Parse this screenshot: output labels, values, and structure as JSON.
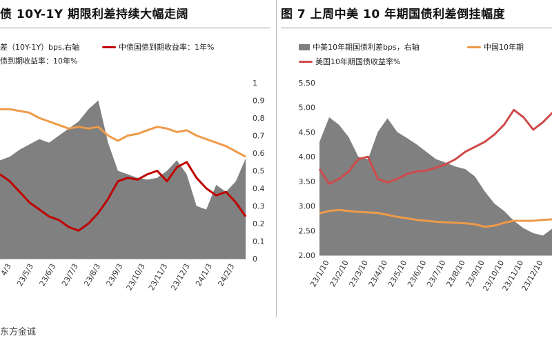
{
  "left": {
    "title": "债 10Y-1Y 期限利差持续大幅走阔",
    "legend": {
      "spread": "差（10Y-1Y）bps,右轴",
      "y1": "中债国债到期收益率：1年%",
      "y10": "债到期收益率：10年%"
    }
  },
  "right": {
    "title": "图 7  上周中美 10 年期国债利差倒挂幅度",
    "legend": {
      "spread": "中美10年期国债利差bps，右轴",
      "cn10": "中国10年期",
      "us10": "美国10年期国债收益率%"
    }
  },
  "source": "东方金诚",
  "colors": {
    "area": "#808080",
    "cn_1y": "#c00000",
    "cn_10y": "#ee9a48",
    "us_10y": "#cf4a4a"
  },
  "chart_data": [
    {
      "type": "line",
      "title": "债 10Y-1Y 期限利差持续大幅走阔",
      "x_ticks": [
        "4/3",
        "23/5/3",
        "23/6/3",
        "23/7/3",
        "23/8/3",
        "23/9/3",
        "23/10/3",
        "23/11/3",
        "23/12/3",
        "24/1/3",
        "24/2/3"
      ],
      "right_axis": {
        "ticks": [
          "0",
          "0.1",
          "0.2",
          "0.3",
          "0.4",
          "0.5",
          "0.6",
          "0.7",
          "0.8",
          "0.9",
          "1"
        ],
        "range": [
          0,
          1
        ]
      },
      "series": [
        {
          "name": "差（10Y-1Y）bps,右轴",
          "kind": "area",
          "axis": "right",
          "values": [
            0.56,
            0.58,
            0.62,
            0.65,
            0.68,
            0.66,
            0.7,
            0.74,
            0.78,
            0.85,
            0.9,
            0.66,
            0.5,
            0.48,
            0.46,
            0.45,
            0.46,
            0.5,
            0.56,
            0.48,
            0.3,
            0.28,
            0.42,
            0.38,
            0.44,
            0.57
          ]
        },
        {
          "name": "中债国债到期收益率：1年%",
          "kind": "line",
          "axis": "right",
          "values": [
            0.48,
            0.44,
            0.38,
            0.32,
            0.28,
            0.24,
            0.22,
            0.18,
            0.16,
            0.2,
            0.26,
            0.34,
            0.44,
            0.46,
            0.45,
            0.48,
            0.5,
            0.44,
            0.52,
            0.55,
            0.46,
            0.4,
            0.36,
            0.38,
            0.32,
            0.24
          ]
        },
        {
          "name": "债到期收益率：10年%",
          "kind": "line",
          "axis": "right",
          "values": [
            0.85,
            0.85,
            0.84,
            0.83,
            0.8,
            0.78,
            0.76,
            0.74,
            0.75,
            0.74,
            0.75,
            0.7,
            0.67,
            0.7,
            0.71,
            0.73,
            0.75,
            0.74,
            0.72,
            0.73,
            0.7,
            0.68,
            0.66,
            0.64,
            0.61,
            0.58
          ]
        }
      ]
    },
    {
      "type": "line",
      "title": "图 7  上周中美 10 年期国债利差倒挂幅度",
      "x_ticks": [
        "23/1/10",
        "23/2/10",
        "23/3/10",
        "23/4/10",
        "23/5/10",
        "23/6/10",
        "23/7/10",
        "23/8/10",
        "23/9/10",
        "23/10/10",
        "23/11/10",
        "23/12/10"
      ],
      "left_axis": {
        "ticks": [
          "2.00",
          "2.50",
          "3.00",
          "3.50",
          "4.00",
          "4.50",
          "5.00",
          "5.50"
        ],
        "range": [
          2.0,
          5.5
        ]
      },
      "series": [
        {
          "name": "中美10年期国债利差bps，右轴",
          "kind": "area",
          "axis": "left",
          "values": [
            4.3,
            4.8,
            4.65,
            4.4,
            4.0,
            3.95,
            4.5,
            4.78,
            4.5,
            4.38,
            4.25,
            4.1,
            3.95,
            3.88,
            3.8,
            3.75,
            3.6,
            3.3,
            3.05,
            2.9,
            2.7,
            2.55,
            2.45,
            2.4,
            2.55
          ]
        },
        {
          "name": "中国10年期",
          "kind": "line",
          "axis": "left",
          "values": [
            2.85,
            2.9,
            2.92,
            2.9,
            2.88,
            2.87,
            2.86,
            2.82,
            2.78,
            2.75,
            2.72,
            2.7,
            2.68,
            2.67,
            2.66,
            2.65,
            2.63,
            2.58,
            2.6,
            2.66,
            2.7,
            2.7,
            2.7,
            2.72,
            2.73
          ]
        },
        {
          "name": "美国10年期国债收益率%",
          "kind": "line",
          "axis": "left",
          "values": [
            3.75,
            3.45,
            3.55,
            3.7,
            3.95,
            4.0,
            3.55,
            3.48,
            3.55,
            3.65,
            3.7,
            3.72,
            3.78,
            3.85,
            3.95,
            4.1,
            4.2,
            4.3,
            4.45,
            4.65,
            4.95,
            4.8,
            4.55,
            4.7,
            4.9
          ]
        }
      ]
    }
  ]
}
